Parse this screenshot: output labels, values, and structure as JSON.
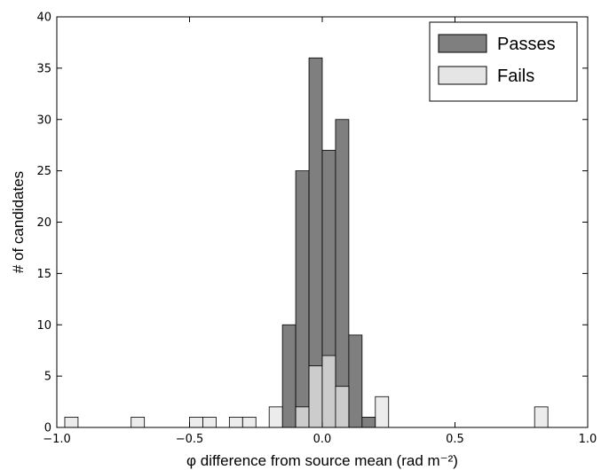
{
  "chart_data": {
    "type": "bar",
    "subtype": "overlaid-histogram",
    "xlabel": "φ difference from source mean (rad m⁻²)",
    "ylabel": "# of candidates",
    "xlim": [
      -1.0,
      1.0
    ],
    "ylim": [
      0,
      40
    ],
    "xticks": [
      -1.0,
      -0.5,
      0.0,
      0.5,
      1.0
    ],
    "xtick_labels": [
      "−1.0",
      "−0.5",
      "0.0",
      "0.5",
      "1.0"
    ],
    "yticks": [
      0,
      5,
      10,
      15,
      20,
      25,
      30,
      35,
      40
    ],
    "ytick_labels": [
      "0",
      "5",
      "10",
      "15",
      "20",
      "25",
      "30",
      "35",
      "40"
    ],
    "bin_width": 0.05,
    "grid": false,
    "legend_position": "top-right",
    "series": [
      {
        "name": "Passes",
        "color": "#7f7f7f",
        "bins": [
          {
            "start": -0.15,
            "value": 10
          },
          {
            "start": -0.1,
            "value": 25
          },
          {
            "start": -0.05,
            "value": 36
          },
          {
            "start": 0.0,
            "value": 27
          },
          {
            "start": 0.05,
            "value": 30
          },
          {
            "start": 0.1,
            "value": 9
          },
          {
            "start": 0.15,
            "value": 1
          }
        ]
      },
      {
        "name": "Fails",
        "color": "#e5e5e5",
        "bins": [
          {
            "start": -0.97,
            "value": 1
          },
          {
            "start": -0.72,
            "value": 1
          },
          {
            "start": -0.5,
            "value": 1
          },
          {
            "start": -0.45,
            "value": 1
          },
          {
            "start": -0.35,
            "value": 1
          },
          {
            "start": -0.3,
            "value": 1
          },
          {
            "start": -0.2,
            "value": 2
          },
          {
            "start": -0.1,
            "value": 2
          },
          {
            "start": -0.05,
            "value": 6
          },
          {
            "start": 0.0,
            "value": 7
          },
          {
            "start": 0.05,
            "value": 4
          },
          {
            "start": 0.2,
            "value": 3
          },
          {
            "start": 0.8,
            "value": 2
          }
        ]
      }
    ]
  }
}
